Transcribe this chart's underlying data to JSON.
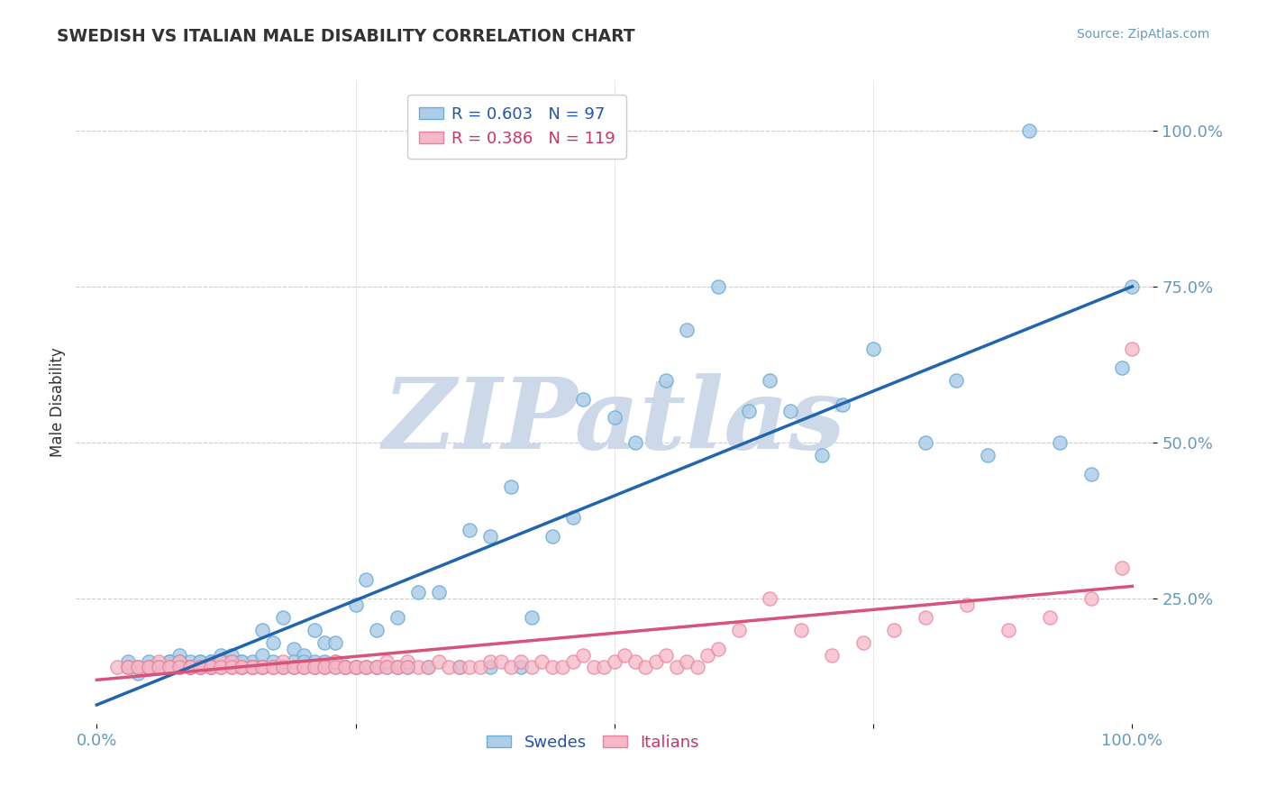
{
  "title": "SWEDISH VS ITALIAN MALE DISABILITY CORRELATION CHART",
  "source": "Source: ZipAtlas.com",
  "ylabel": "Male Disability",
  "y_tick_labels": [
    "100.0%",
    "75.0%",
    "50.0%",
    "25.0%"
  ],
  "y_tick_values": [
    100.0,
    75.0,
    50.0,
    25.0
  ],
  "blue_R": 0.603,
  "blue_N": 97,
  "pink_R": 0.386,
  "pink_N": 119,
  "blue_line_start_x": 0.0,
  "blue_line_start_y": 8.0,
  "blue_line_end_x": 100.0,
  "blue_line_end_y": 75.0,
  "pink_line_start_x": 0.0,
  "pink_line_start_y": 12.0,
  "pink_line_end_x": 100.0,
  "pink_line_end_y": 27.0,
  "blue_fill_color": "#aecde8",
  "pink_fill_color": "#f4b8c8",
  "blue_edge_color": "#6baed6",
  "pink_edge_color": "#e8829a",
  "blue_line_color": "#2166ac",
  "pink_line_color": "#d6537a",
  "watermark": "ZIPatlas",
  "watermark_color": "#cdd8e8",
  "background_color": "#ffffff",
  "grid_color": "#cccccc",
  "title_color": "#333333",
  "ylabel_color": "#333333",
  "axis_tick_color": "#6699bb",
  "legend_text_color_blue": "#2255aa",
  "legend_text_color_pink": "#cc3366",
  "xlim": [
    -2,
    102
  ],
  "ylim": [
    5,
    108
  ],
  "blue_scatter_x": [
    3,
    4,
    5,
    5,
    6,
    6,
    7,
    7,
    8,
    8,
    8,
    9,
    9,
    10,
    10,
    11,
    11,
    12,
    12,
    13,
    14,
    14,
    15,
    15,
    16,
    16,
    17,
    18,
    19,
    20,
    21,
    22,
    23,
    25,
    26,
    27,
    29,
    31,
    33,
    36,
    38,
    40,
    42,
    44,
    46,
    47,
    50,
    52,
    55,
    57,
    60,
    63,
    65,
    67,
    70,
    72,
    75,
    80,
    83,
    86,
    90,
    93,
    96,
    99,
    100,
    3,
    4,
    5,
    6,
    7,
    8,
    9,
    10,
    11,
    12,
    13,
    14,
    15,
    16,
    17,
    18,
    19,
    20,
    21,
    22,
    23,
    24,
    25,
    26,
    27,
    28,
    29,
    30,
    32,
    35,
    38,
    41
  ],
  "blue_scatter_y": [
    14,
    13,
    14,
    15,
    14,
    14,
    15,
    15,
    14,
    15,
    16,
    14,
    15,
    15,
    14,
    15,
    14,
    16,
    15,
    16,
    14,
    15,
    15,
    14,
    16,
    20,
    18,
    22,
    17,
    16,
    20,
    18,
    18,
    24,
    28,
    20,
    22,
    26,
    26,
    36,
    35,
    43,
    22,
    35,
    38,
    57,
    54,
    50,
    60,
    68,
    75,
    55,
    60,
    55,
    48,
    56,
    65,
    50,
    60,
    48,
    100,
    50,
    45,
    62,
    75,
    15,
    14,
    14,
    14,
    15,
    15,
    14,
    15,
    15,
    15,
    15,
    15,
    14,
    14,
    15,
    14,
    15,
    15,
    15,
    15,
    14,
    14,
    14,
    14,
    14,
    14,
    14,
    14,
    14,
    14,
    14,
    14
  ],
  "pink_scatter_x": [
    2,
    3,
    4,
    5,
    5,
    6,
    6,
    7,
    7,
    8,
    8,
    9,
    9,
    10,
    10,
    11,
    11,
    12,
    12,
    13,
    13,
    14,
    14,
    15,
    15,
    16,
    16,
    17,
    17,
    18,
    18,
    19,
    19,
    20,
    20,
    21,
    21,
    22,
    22,
    23,
    23,
    24,
    24,
    25,
    25,
    26,
    27,
    28,
    29,
    30,
    31,
    32,
    33,
    34,
    35,
    36,
    37,
    38,
    39,
    40,
    41,
    42,
    43,
    44,
    45,
    46,
    47,
    48,
    49,
    50,
    51,
    52,
    53,
    54,
    55,
    56,
    57,
    58,
    59,
    60,
    62,
    65,
    68,
    71,
    74,
    77,
    80,
    84,
    88,
    92,
    96,
    99,
    100,
    3,
    4,
    5,
    6,
    7,
    8,
    9,
    10,
    11,
    12,
    13,
    14,
    15,
    16,
    17,
    18,
    19,
    20,
    21,
    22,
    23,
    24,
    25,
    26,
    27,
    28,
    29,
    30
  ],
  "pink_scatter_y": [
    14,
    14,
    14,
    14,
    14,
    14,
    15,
    14,
    14,
    14,
    15,
    14,
    14,
    14,
    14,
    14,
    14,
    14,
    15,
    14,
    15,
    14,
    14,
    14,
    14,
    14,
    14,
    14,
    14,
    14,
    15,
    14,
    14,
    14,
    14,
    14,
    14,
    14,
    14,
    15,
    15,
    14,
    14,
    14,
    14,
    14,
    14,
    15,
    14,
    15,
    14,
    14,
    15,
    14,
    14,
    14,
    14,
    15,
    15,
    14,
    15,
    14,
    15,
    14,
    14,
    15,
    16,
    14,
    14,
    15,
    16,
    15,
    14,
    15,
    16,
    14,
    15,
    14,
    16,
    17,
    20,
    25,
    20,
    16,
    18,
    20,
    22,
    24,
    20,
    22,
    25,
    30,
    65,
    14,
    14,
    14,
    14,
    14,
    14,
    14,
    14,
    14,
    14,
    14,
    14,
    14,
    14,
    14,
    14,
    14,
    14,
    14,
    14,
    14,
    14,
    14,
    14,
    14,
    14,
    14,
    14
  ]
}
